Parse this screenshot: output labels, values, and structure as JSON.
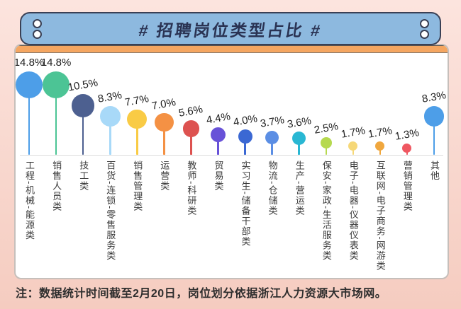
{
  "header": {
    "title": "# 招聘岗位类型占比 #"
  },
  "footer": {
    "note": "注：数据统计时间截至2月20日，岗位划分依据浙江人力资源大市场网。"
  },
  "colors": {
    "background_top": "#FCE4DE",
    "background_bottom": "#F5CCC0",
    "header_bg": "#8DB9DF",
    "header_border": "#3A4055",
    "title_text": "#2A3353",
    "accent_strip": "#F5A661",
    "panel_bg": "#FFFFFF",
    "baseline": "#DDDDDD"
  },
  "chart_data": {
    "type": "bubble",
    "title": "招聘岗位类型占比",
    "unit": "%",
    "legend_position": "none",
    "grid": false,
    "categories": [
      "工程-机械-能源类",
      "销售人员类",
      "技工类",
      "百货-连锁-零售服务类",
      "销售管理类",
      "运营类",
      "教师-科研类",
      "贸易类",
      "实习生-储备干部类",
      "物流-仓储类",
      "生产-营运类",
      "保安-家政-生活服务类",
      "电子-电器-仪器仪表类",
      "互联网-电子商务-网游类",
      "营销管理类",
      "其他"
    ],
    "values": [
      14.8,
      14.8,
      10.5,
      8.3,
      7.7,
      7.0,
      5.6,
      4.4,
      4.0,
      3.7,
      3.6,
      2.5,
      1.7,
      1.7,
      1.3,
      8.3
    ],
    "value_labels": [
      "14.8%",
      "14.8%",
      "10.5%",
      "8.3%",
      "7.7%",
      "7.0%",
      "5.6%",
      "4.4%",
      "4.0%",
      "3.7%",
      "3.6%",
      "2.5%",
      "1.7%",
      "1.7%",
      "1.3%",
      "8.3%"
    ],
    "bubble_colors": [
      "#4D9EE8",
      "#4CC495",
      "#4D6090",
      "#A8D9F8",
      "#F9CB45",
      "#F49144",
      "#DD5250",
      "#6852D8",
      "#3B68D3",
      "#5B8EE4",
      "#29B7D3",
      "#B6D94F",
      "#F6D878",
      "#F0A73E",
      "#EF5761",
      "#4D9EE8"
    ]
  }
}
